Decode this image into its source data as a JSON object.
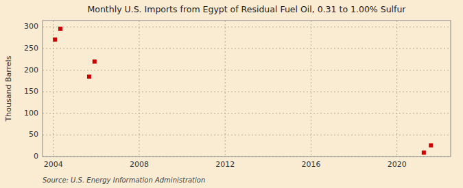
{
  "chart_data": {
    "type": "scatter",
    "title": "Monthly U.S. Imports from Egypt of Residual Fuel Oil, 0.31 to 1.00% Sulfur",
    "ylabel": "Thousand Barrels",
    "source": "Source: U.S. Energy Information Administration",
    "x": [
      2004.08,
      2004.33,
      2005.67,
      2005.92,
      2021.25,
      2021.58
    ],
    "values": [
      271,
      296,
      185,
      220,
      9,
      26
    ],
    "color": "#cc0000",
    "marker": "square",
    "xlim": [
      2003.5,
      2022.5
    ],
    "ylim": [
      0,
      315
    ],
    "xticks": [
      2004,
      2008,
      2012,
      2016,
      2020
    ],
    "yticks": [
      0,
      50,
      100,
      150,
      200,
      250,
      300
    ],
    "grid": true
  }
}
